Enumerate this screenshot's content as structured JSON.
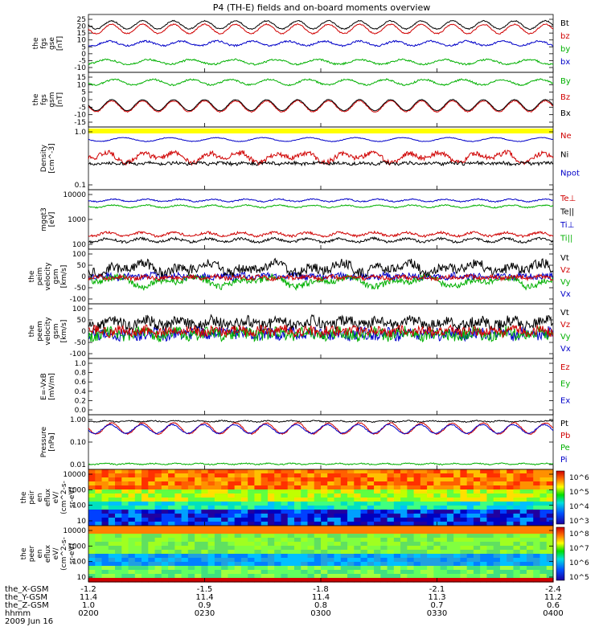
{
  "title": "P4 (TH-E) fields and on-board moments overview",
  "panels": [
    {
      "id": "fgs-gse",
      "ylabel": [
        "the",
        "fgs",
        "gse",
        "[nT]"
      ],
      "ticks": [
        "25",
        "20",
        "15",
        "10",
        "5",
        "0",
        "-5",
        "-10"
      ],
      "legend": [
        {
          "text": "Bt",
          "color": "#000000"
        },
        {
          "text": "bz",
          "color": "#d00000"
        },
        {
          "text": "by",
          "color": "#00b000"
        },
        {
          "text": "bx",
          "color": "#0000c8"
        }
      ]
    },
    {
      "id": "fgs-gsm",
      "ylabel": [
        "the",
        "fgs",
        "gsm",
        "[nT]"
      ],
      "ticks": [
        "15",
        "10",
        "5",
        "0",
        "-5",
        "-10",
        "-15"
      ],
      "legend": [
        {
          "text": "By",
          "color": "#00b000"
        },
        {
          "text": "Bz",
          "color": "#d00000"
        },
        {
          "text": "Bx",
          "color": "#000000"
        }
      ]
    },
    {
      "id": "density",
      "ylabel": [
        "Density",
        "[cm^-3]"
      ],
      "ticks": [
        "1.0",
        "0.1"
      ],
      "legend": [
        {
          "text": "Ne",
          "color": "#d00000"
        },
        {
          "text": "Ni",
          "color": "#000000"
        },
        {
          "text": "Npot",
          "color": "#0000c8"
        }
      ]
    },
    {
      "id": "temperature",
      "ylabel": [
        "mgqt3",
        "[eV]"
      ],
      "ticks": [
        "10000",
        "1000",
        "100"
      ],
      "legend": [
        {
          "text": "Te⊥",
          "color": "#d00000"
        },
        {
          "text": "Te||",
          "color": "#000000"
        },
        {
          "text": "Ti⊥",
          "color": "#0000c8"
        },
        {
          "text": "Ti||",
          "color": "#00b000"
        }
      ]
    },
    {
      "id": "ion-velocity",
      "ylabel": [
        "the",
        "peim",
        "velocity",
        "gsm",
        "[km/s]"
      ],
      "ticks": [
        "100",
        "50",
        "0",
        "-50",
        "-100"
      ],
      "legend": [
        {
          "text": "Vt",
          "color": "#000000"
        },
        {
          "text": "Vz",
          "color": "#d00000"
        },
        {
          "text": "Vy",
          "color": "#00b000"
        },
        {
          "text": "Vx",
          "color": "#0000c8"
        }
      ]
    },
    {
      "id": "electron-velocity",
      "ylabel": [
        "the",
        "peem",
        "velocity",
        "gsm",
        "[km/s]"
      ],
      "ticks": [
        "100",
        "50",
        "0",
        "-50",
        "-100"
      ],
      "legend": [
        {
          "text": "Vt",
          "color": "#000000"
        },
        {
          "text": "Vz",
          "color": "#d00000"
        },
        {
          "text": "Vy",
          "color": "#00b000"
        },
        {
          "text": "Vx",
          "color": "#0000c8"
        }
      ]
    },
    {
      "id": "efield",
      "ylabel": [
        "E=-VxB",
        "[mV/m]"
      ],
      "ticks": [
        "1.0",
        "0.8",
        "0.6",
        "0.4",
        "0.2",
        "0.0"
      ],
      "legend": [
        {
          "text": "Ez",
          "color": "#d00000"
        },
        {
          "text": "Ey",
          "color": "#00b000"
        },
        {
          "text": "Ex",
          "color": "#0000c8"
        }
      ]
    },
    {
      "id": "pressure",
      "ylabel": [
        "Pressure",
        "[nPa]"
      ],
      "ticks": [
        "1.00",
        "0.10",
        "0.01"
      ],
      "legend": [
        {
          "text": "Pt",
          "color": "#000000"
        },
        {
          "text": "Pb",
          "color": "#d00000"
        },
        {
          "text": "Pe",
          "color": "#00b000"
        },
        {
          "text": "Pi",
          "color": "#0000c8"
        }
      ]
    },
    {
      "id": "ion-spectrogram",
      "ylabel": [
        "the",
        "peir",
        "en",
        "eflux",
        "eV/",
        "(cm^2-s-",
        "sr-eV)"
      ],
      "ticks": [
        "10000",
        "1000",
        "100",
        "10"
      ],
      "colorbar": [
        "10^6",
        "10^5",
        "10^4",
        "10^3"
      ]
    },
    {
      "id": "electron-spectrogram",
      "ylabel": [
        "the",
        "peer",
        "en",
        "eflux",
        "eV/",
        "(cm^2-s-",
        "sr-eV)"
      ],
      "ticks": [
        "10000",
        "1000",
        "100",
        "10"
      ],
      "colorbar": [
        "10^8",
        "10^7",
        "10^6",
        "10^5"
      ]
    }
  ],
  "ephemeris": {
    "rows": [
      {
        "label": "the_X-GSM",
        "values": [
          "-1.2",
          "-1.5",
          "-1.8",
          "-2.1",
          "-2.4"
        ]
      },
      {
        "label": "the_Y-GSM",
        "values": [
          "11.4",
          "11.4",
          "11.4",
          "11.3",
          "11.2"
        ]
      },
      {
        "label": "the_Z-GSM",
        "values": [
          "1.0",
          "0.9",
          "0.8",
          "0.7",
          "0.6"
        ]
      },
      {
        "label": "hhmm",
        "values": [
          "0200",
          "0230",
          "0300",
          "0330",
          "0400"
        ]
      }
    ],
    "date": "2009 Jun 16"
  },
  "chart_data": {
    "type": "line",
    "x_ticks": [
      "0200",
      "0230",
      "0300",
      "0330",
      "0400"
    ],
    "series": [
      {
        "name": "Bt",
        "panel": "fgs-gse",
        "values": [
          22,
          21,
          24,
          18,
          23,
          19,
          22,
          18,
          23,
          20,
          22
        ]
      },
      {
        "name": "bz",
        "panel": "fgs-gse",
        "values": [
          18,
          19,
          21,
          14,
          20,
          15,
          19,
          14,
          20,
          16,
          18
        ]
      },
      {
        "name": "by",
        "panel": "fgs-gse",
        "values": [
          9,
          8,
          9,
          7,
          8,
          7,
          8,
          7,
          8,
          7,
          8
        ]
      },
      {
        "name": "bx",
        "panel": "fgs-gse",
        "values": [
          -8,
          -7,
          -6,
          -8,
          -6,
          -7,
          -6,
          -7,
          -6,
          -6,
          -5
        ]
      },
      {
        "name": "By",
        "panel": "fgs-gsm",
        "values": [
          10,
          11,
          9,
          11,
          9,
          11,
          9,
          11,
          10,
          11,
          10
        ]
      },
      {
        "name": "Bz",
        "panel": "fgs-gsm",
        "values": [
          -5,
          -4,
          -7,
          -3,
          -9,
          -2,
          -8,
          -3,
          -7,
          -4,
          -5
        ]
      },
      {
        "name": "Ne",
        "panel": "density",
        "values": [
          0.45,
          0.5,
          0.35,
          0.5,
          0.3,
          0.5,
          0.35,
          0.5,
          0.4,
          0.5,
          0.45
        ]
      },
      {
        "name": "Ni",
        "panel": "density",
        "values": [
          0.2,
          0.2,
          0.2,
          0.2,
          0.2,
          0.2,
          0.2,
          0.2,
          0.2,
          0.2,
          0.2
        ]
      },
      {
        "name": "Npot",
        "panel": "density",
        "values": [
          0.9,
          0.9,
          0.8,
          0.9,
          0.75,
          0.9,
          0.8,
          0.9,
          0.85,
          0.9,
          0.9
        ]
      },
      {
        "name": "Te⊥",
        "panel": "temperature",
        "values": [
          300,
          320,
          250,
          310,
          260,
          300,
          280,
          320,
          300,
          310,
          300
        ]
      },
      {
        "name": "Te||",
        "panel": "temperature",
        "values": [
          210,
          220,
          180,
          220,
          190,
          210,
          200,
          220,
          210,
          220,
          210
        ]
      },
      {
        "name": "Ti⊥",
        "panel": "temperature",
        "values": [
          6000,
          6200,
          6000,
          6300,
          6100,
          6200,
          6000,
          6200,
          6100,
          6200,
          6100
        ]
      },
      {
        "name": "Ti||",
        "panel": "temperature",
        "values": [
          4200,
          4300,
          4100,
          4300,
          4200,
          4300,
          4200,
          4300,
          4200,
          4300,
          4200
        ]
      },
      {
        "name": "Vt",
        "panel": "ion-velocity",
        "values": [
          20,
          25,
          30,
          50,
          70,
          45,
          55,
          40,
          30,
          25,
          20
        ]
      },
      {
        "name": "Vz",
        "panel": "ion-velocity",
        "values": [
          5,
          0,
          5,
          0,
          -5,
          0,
          5,
          0,
          0,
          5,
          0
        ]
      },
      {
        "name": "Vy",
        "panel": "ion-velocity",
        "values": [
          -10,
          -15,
          -20,
          -30,
          -60,
          -30,
          -40,
          -20,
          -15,
          -10,
          -10
        ]
      },
      {
        "name": "Vx",
        "panel": "ion-velocity",
        "values": [
          10,
          15,
          10,
          15,
          10,
          15,
          10,
          15,
          10,
          15,
          10
        ]
      },
      {
        "name": "Pt",
        "panel": "pressure",
        "values": [
          0.45,
          0.45,
          0.45,
          0.45,
          0.45,
          0.45,
          0.45,
          0.45,
          0.45,
          0.45,
          0.45
        ]
      },
      {
        "name": "Pb",
        "panel": "pressure",
        "values": [
          0.22,
          0.2,
          0.1,
          0.2,
          0.05,
          0.2,
          0.07,
          0.2,
          0.1,
          0.2,
          0.2
        ]
      },
      {
        "name": "Pe",
        "panel": "pressure",
        "values": [
          0.015,
          0.015,
          0.015,
          0.015,
          0.015,
          0.015,
          0.015,
          0.015,
          0.015,
          0.015,
          0.015
        ]
      }
    ]
  }
}
